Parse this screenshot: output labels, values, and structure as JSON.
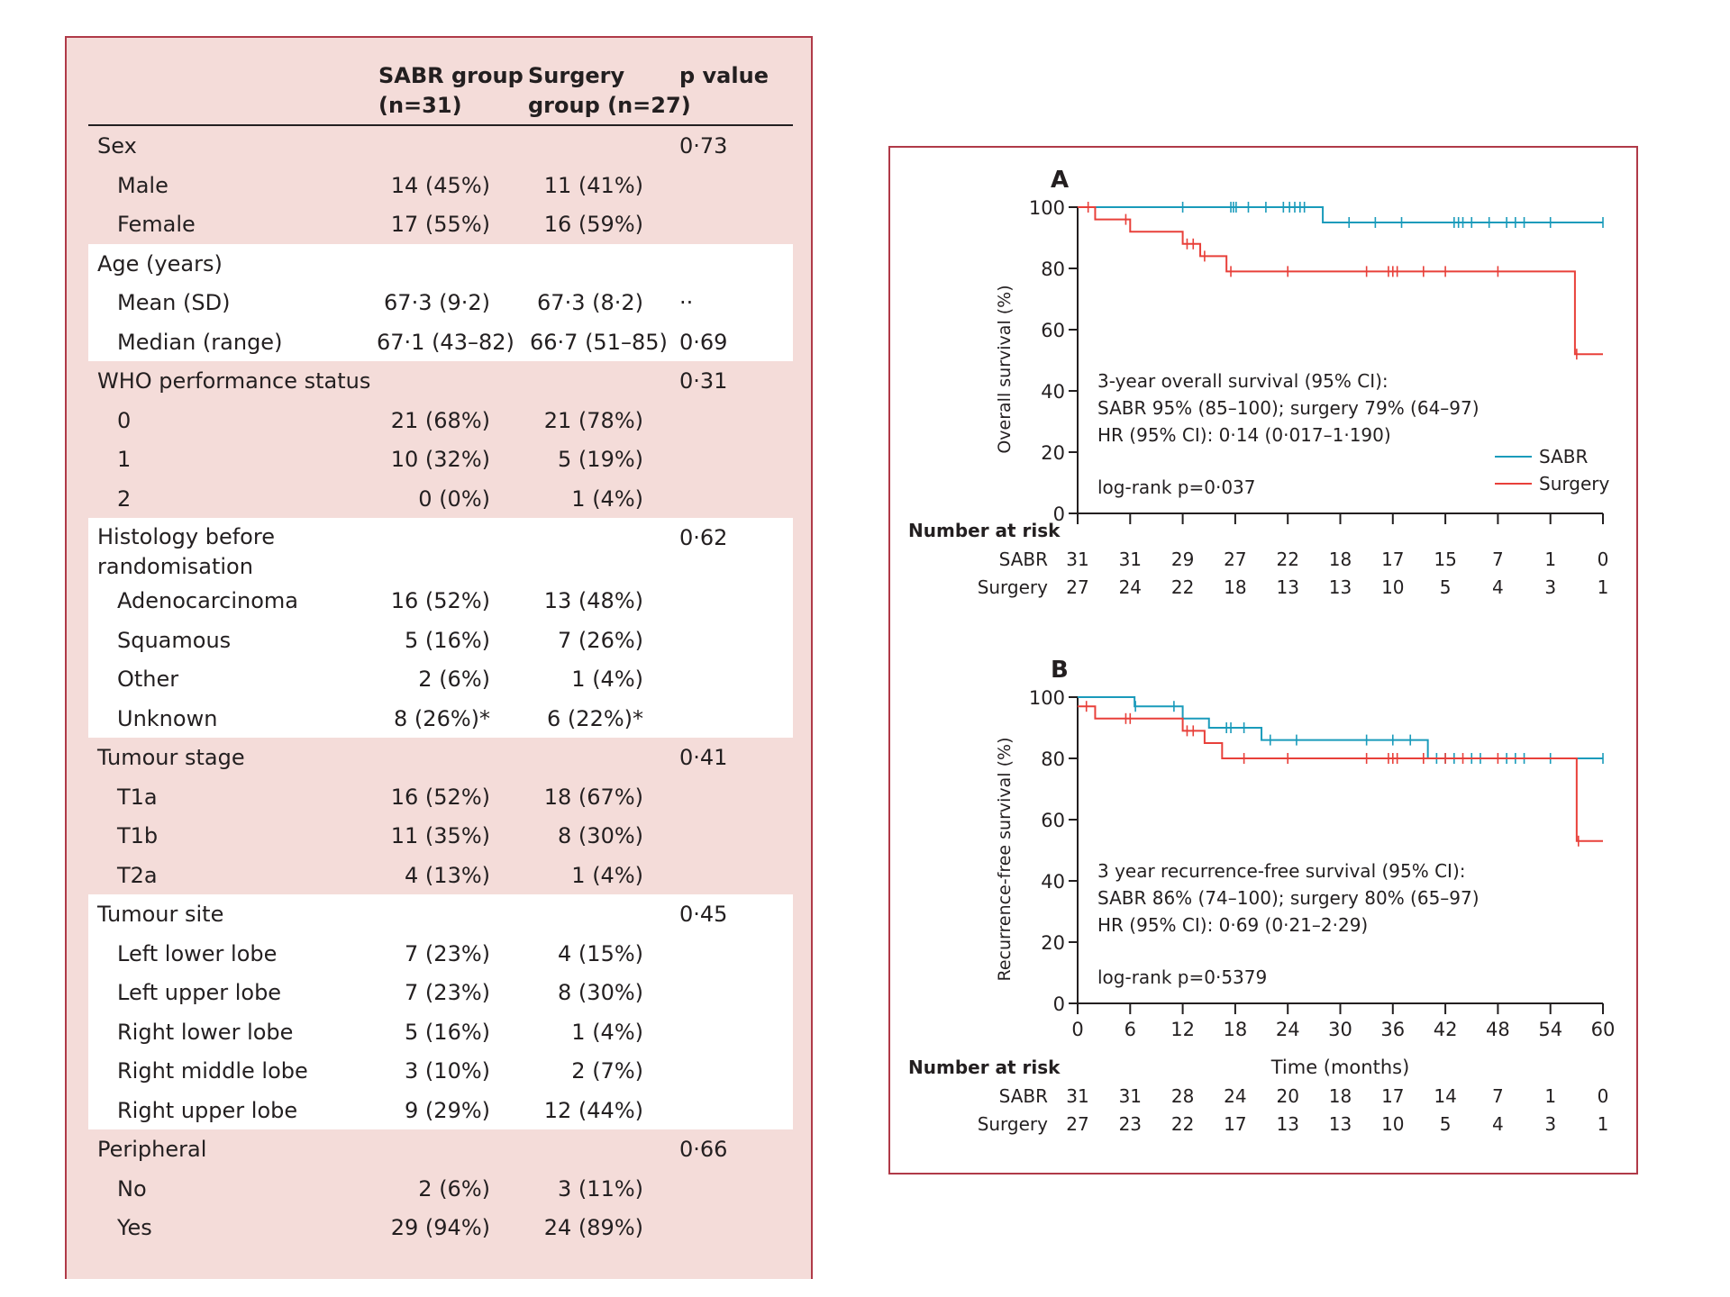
{
  "table": {
    "headers": {
      "sabr_line1": "SABR group",
      "sabr_line2": "(n=31)",
      "surgery_line1": "Surgery",
      "surgery_line2": "group (n=27)",
      "p_value": "p value"
    },
    "sections": [
      {
        "title": "Sex",
        "p": "0·73",
        "shaded": true,
        "rows": [
          {
            "label": "Male",
            "sabr": "14 (45%)",
            "surgery": "11 (41%)",
            "p": ""
          },
          {
            "label": "Female",
            "sabr": "17 (55%)",
            "surgery": "16 (59%)",
            "p": ""
          }
        ]
      },
      {
        "title": "Age (years)",
        "p": "",
        "shaded": false,
        "rows": [
          {
            "label": "Mean (SD)",
            "sabr": "67·3 (9·2)",
            "surgery": "67·3 (8·2)",
            "p": "··"
          },
          {
            "label": "Median (range)",
            "sabr": "67·1 (43–82)",
            "surgery": "66·7 (51–85)",
            "p": "0·69"
          }
        ]
      },
      {
        "title": "WHO performance status",
        "p": "0·31",
        "shaded": true,
        "rows": [
          {
            "label": "0",
            "sabr": "21 (68%)",
            "surgery": "21 (78%)",
            "p": ""
          },
          {
            "label": "1",
            "sabr": "10 (32%)",
            "surgery": "5 (19%)",
            "p": ""
          },
          {
            "label": "2",
            "sabr": "0 (0%)",
            "surgery": "1 (4%)",
            "p": ""
          }
        ]
      },
      {
        "title": "Histology before",
        "title2": "randomisation",
        "p": "0·62",
        "shaded": false,
        "rows": [
          {
            "label": "Adenocarcinoma",
            "sabr": "16 (52%)",
            "surgery": "13 (48%)",
            "p": ""
          },
          {
            "label": "Squamous",
            "sabr": "5 (16%)",
            "surgery": "7 (26%)",
            "p": ""
          },
          {
            "label": "Other",
            "sabr": "2 (6%)",
            "surgery": "1 (4%)",
            "p": ""
          },
          {
            "label": "Unknown",
            "sabr": "8 (26%)*",
            "surgery": "6 (22%)*",
            "p": ""
          }
        ]
      },
      {
        "title": "Tumour stage",
        "p": "0·41",
        "shaded": true,
        "rows": [
          {
            "label": "T1a",
            "sabr": "16 (52%)",
            "surgery": "18 (67%)",
            "p": ""
          },
          {
            "label": "T1b",
            "sabr": "11 (35%)",
            "surgery": "8 (30%)",
            "p": ""
          },
          {
            "label": "T2a",
            "sabr": "4 (13%)",
            "surgery": "1 (4%)",
            "p": ""
          }
        ]
      },
      {
        "title": "Tumour site",
        "p": "0·45",
        "shaded": false,
        "rows": [
          {
            "label": "Left lower lobe",
            "sabr": "7 (23%)",
            "surgery": "4 (15%)",
            "p": ""
          },
          {
            "label": "Left upper lobe",
            "sabr": "7 (23%)",
            "surgery": "8 (30%)",
            "p": ""
          },
          {
            "label": "Right lower lobe",
            "sabr": "5 (16%)",
            "surgery": "1 (4%)",
            "p": ""
          },
          {
            "label": "Right middle lobe",
            "sabr": "3 (10%)",
            "surgery": "2 (7%)",
            "p": ""
          },
          {
            "label": "Right upper lobe",
            "sabr": "9 (29%)",
            "surgery": "12 (44%)",
            "p": ""
          }
        ]
      },
      {
        "title": "Peripheral",
        "p": "0·66",
        "shaded": true,
        "rows": [
          {
            "label": "No",
            "sabr": "2 (6%)",
            "surgery": "3 (11%)",
            "p": ""
          },
          {
            "label": "Yes",
            "sabr": "29 (94%)",
            "surgery": "24 (89%)",
            "p": ""
          }
        ]
      }
    ]
  },
  "chart_data": [
    {
      "type": "line",
      "panel_label": "A",
      "ylabel": "Overall survival (%)",
      "xlabel": "",
      "xlim": [
        0,
        60
      ],
      "ylim": [
        0,
        100
      ],
      "yticks": [
        0,
        20,
        40,
        60,
        80,
        100
      ],
      "xticks": [
        0,
        6,
        12,
        18,
        24,
        30,
        36,
        42,
        48,
        54,
        60
      ],
      "show_xtick_labels": false,
      "series": [
        {
          "name": "SABR",
          "color": "#1a9bbb",
          "steps": [
            [
              0,
              100
            ],
            [
              28,
              95
            ],
            [
              60,
              95
            ]
          ],
          "censor": [
            [
              12,
              100
            ],
            [
              17.5,
              100
            ],
            [
              17.8,
              100
            ],
            [
              18.1,
              100
            ],
            [
              19.5,
              100
            ],
            [
              21.5,
              100
            ],
            [
              23.5,
              100
            ],
            [
              24.2,
              100
            ],
            [
              24.8,
              100
            ],
            [
              25.4,
              100
            ],
            [
              25.9,
              100
            ],
            [
              31,
              95
            ],
            [
              34,
              95
            ],
            [
              37,
              95
            ],
            [
              43,
              95
            ],
            [
              43.5,
              95
            ],
            [
              44,
              95
            ],
            [
              45,
              95
            ],
            [
              47,
              95
            ],
            [
              49,
              95
            ],
            [
              50,
              95
            ],
            [
              51,
              95
            ],
            [
              54,
              95
            ],
            [
              60,
              95
            ]
          ]
        },
        {
          "name": "Surgery",
          "color": "#e8403a",
          "steps": [
            [
              0,
              100
            ],
            [
              2,
              96
            ],
            [
              6,
              92
            ],
            [
              12,
              88
            ],
            [
              14,
              84
            ],
            [
              17,
              79
            ],
            [
              56,
              79
            ],
            [
              56.8,
              52
            ],
            [
              60,
              52
            ]
          ],
          "censor": [
            [
              1.2,
              100
            ],
            [
              5.5,
              96
            ],
            [
              12.5,
              88
            ],
            [
              13.2,
              88
            ],
            [
              14.5,
              84
            ],
            [
              17.5,
              79
            ],
            [
              24,
              79
            ],
            [
              33,
              79
            ],
            [
              35.5,
              79
            ],
            [
              36,
              79
            ],
            [
              36.5,
              79
            ],
            [
              39.5,
              79
            ],
            [
              42,
              79
            ],
            [
              48,
              79
            ],
            [
              57,
              52
            ]
          ]
        }
      ],
      "annotation": [
        "3-year overall survival (95% CI):",
        "SABR 95% (85–100); surgery 79% (64–97)",
        "HR (95% CI): 0·14 (0·017–1·190)"
      ],
      "pvalue_text": "log-rank p=0·037",
      "legend": [
        "SABR",
        "Surgery"
      ],
      "number_at_risk": {
        "title": "Number at risk",
        "rows": [
          {
            "label": "SABR",
            "values": [
              "31",
              "31",
              "29",
              "27",
              "22",
              "18",
              "17",
              "15",
              "7",
              "1",
              "0"
            ]
          },
          {
            "label": "Surgery",
            "values": [
              "27",
              "24",
              "22",
              "18",
              "13",
              "13",
              "10",
              "5",
              "4",
              "3",
              "1"
            ]
          }
        ]
      }
    },
    {
      "type": "line",
      "panel_label": "B",
      "ylabel": "Recurrence-free survival (%)",
      "xlabel": "Time (months)",
      "xlim": [
        0,
        60
      ],
      "ylim": [
        0,
        100
      ],
      "yticks": [
        0,
        20,
        40,
        60,
        80,
        100
      ],
      "xticks": [
        0,
        6,
        12,
        18,
        24,
        30,
        36,
        42,
        48,
        54,
        60
      ],
      "show_xtick_labels": true,
      "series": [
        {
          "name": "SABR",
          "color": "#1a9bbb",
          "steps": [
            [
              0,
              100
            ],
            [
              6.5,
              97
            ],
            [
              12,
              93
            ],
            [
              15,
              90
            ],
            [
              21,
              86
            ],
            [
              40,
              80
            ],
            [
              60,
              80
            ]
          ],
          "censor": [
            [
              6.6,
              97
            ],
            [
              11,
              97
            ],
            [
              17,
              90
            ],
            [
              17.5,
              90
            ],
            [
              19,
              90
            ],
            [
              22,
              86
            ],
            [
              25,
              86
            ],
            [
              33,
              86
            ],
            [
              36,
              86
            ],
            [
              38,
              86
            ],
            [
              41,
              80
            ],
            [
              42,
              80
            ],
            [
              43,
              80
            ],
            [
              45,
              80
            ],
            [
              46,
              80
            ],
            [
              49,
              80
            ],
            [
              50,
              80
            ],
            [
              51,
              80
            ],
            [
              54,
              80
            ],
            [
              60,
              80
            ]
          ]
        },
        {
          "name": "Surgery",
          "color": "#e8403a",
          "steps": [
            [
              0,
              97
            ],
            [
              2,
              93
            ],
            [
              12,
              89
            ],
            [
              14.5,
              85
            ],
            [
              16.5,
              80
            ],
            [
              56.5,
              80
            ],
            [
              57,
              53
            ],
            [
              60,
              53
            ]
          ],
          "censor": [
            [
              1,
              97
            ],
            [
              5.5,
              93
            ],
            [
              6,
              93
            ],
            [
              12.5,
              89
            ],
            [
              13.2,
              89
            ],
            [
              19,
              80
            ],
            [
              24,
              80
            ],
            [
              33,
              80
            ],
            [
              35.5,
              80
            ],
            [
              36,
              80
            ],
            [
              36.5,
              80
            ],
            [
              39.5,
              80
            ],
            [
              42,
              80
            ],
            [
              44,
              80
            ],
            [
              48,
              80
            ],
            [
              57.2,
              53
            ]
          ]
        }
      ],
      "annotation": [
        "3 year recurrence-free survival (95% CI):",
        "SABR 86% (74–100); surgery 80% (65–97)",
        "HR (95% CI): 0·69 (0·21–2·29)"
      ],
      "pvalue_text": "log-rank p=0·5379",
      "legend": [],
      "number_at_risk": {
        "title": "Number at risk",
        "rows": [
          {
            "label": "SABR",
            "values": [
              "31",
              "31",
              "28",
              "24",
              "20",
              "18",
              "17",
              "14",
              "7",
              "1",
              "0"
            ]
          },
          {
            "label": "Surgery",
            "values": [
              "27",
              "23",
              "22",
              "17",
              "13",
              "13",
              "10",
              "5",
              "4",
              "3",
              "1"
            ]
          }
        ]
      }
    }
  ]
}
